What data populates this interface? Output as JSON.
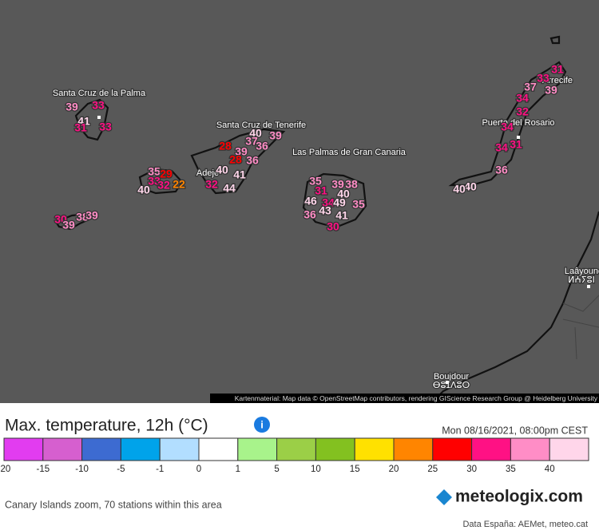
{
  "map": {
    "places": [
      "Santa Cruz de la Palma",
      "Santa Cruz de Tenerife",
      "Las Palmas de Gran Canaria",
      "Puerto del Rosario",
      "Arrecife",
      "Adeje",
      "Laâyoune",
      "ⵍⵄⵢⵓⵏ",
      "Boujdour",
      "ⴱⵓⵊⴷⵓⵔ"
    ],
    "stations": [
      39,
      33,
      41,
      31,
      33,
      30,
      38,
      39,
      39,
      35,
      29,
      33,
      32,
      22,
      40,
      40,
      39,
      37,
      36,
      28,
      39,
      28,
      36,
      40,
      41,
      32,
      44,
      35,
      39,
      38,
      31,
      40,
      46,
      34,
      49,
      35,
      43,
      36,
      41,
      30,
      31,
      33,
      37,
      39,
      34,
      32,
      34,
      34,
      31,
      36,
      40,
      40
    ],
    "attribution": "Kartenmaterial: Map data © OpenStreetMap contributors, rendering GIScience Research Group @ Heidelberg University"
  },
  "legend": {
    "title": "Max. temperature, 12h (°C)",
    "datetime": "Mon 08/16/2021, 08:00pm CEST",
    "ticks": [
      -20,
      -15,
      -10,
      -5,
      -1,
      0,
      1,
      5,
      10,
      15,
      20,
      25,
      30,
      35,
      40
    ],
    "colors": [
      "#e23cf0",
      "#d65fcf",
      "#3d6bd1",
      "#00a3ea",
      "#b2deff",
      "#ffffff",
      "#a8f38b",
      "#9bcf47",
      "#83c120",
      "#ffe100",
      "#ff8500",
      "#ff0000",
      "#ff1184",
      "#ff8dc6",
      "#ffd6ea"
    ]
  },
  "footer": {
    "info": "Canary Islands zoom, 70 stations within this area",
    "brand": "meteologix.com",
    "source": "Data España: AEMet, meteo.cat"
  }
}
